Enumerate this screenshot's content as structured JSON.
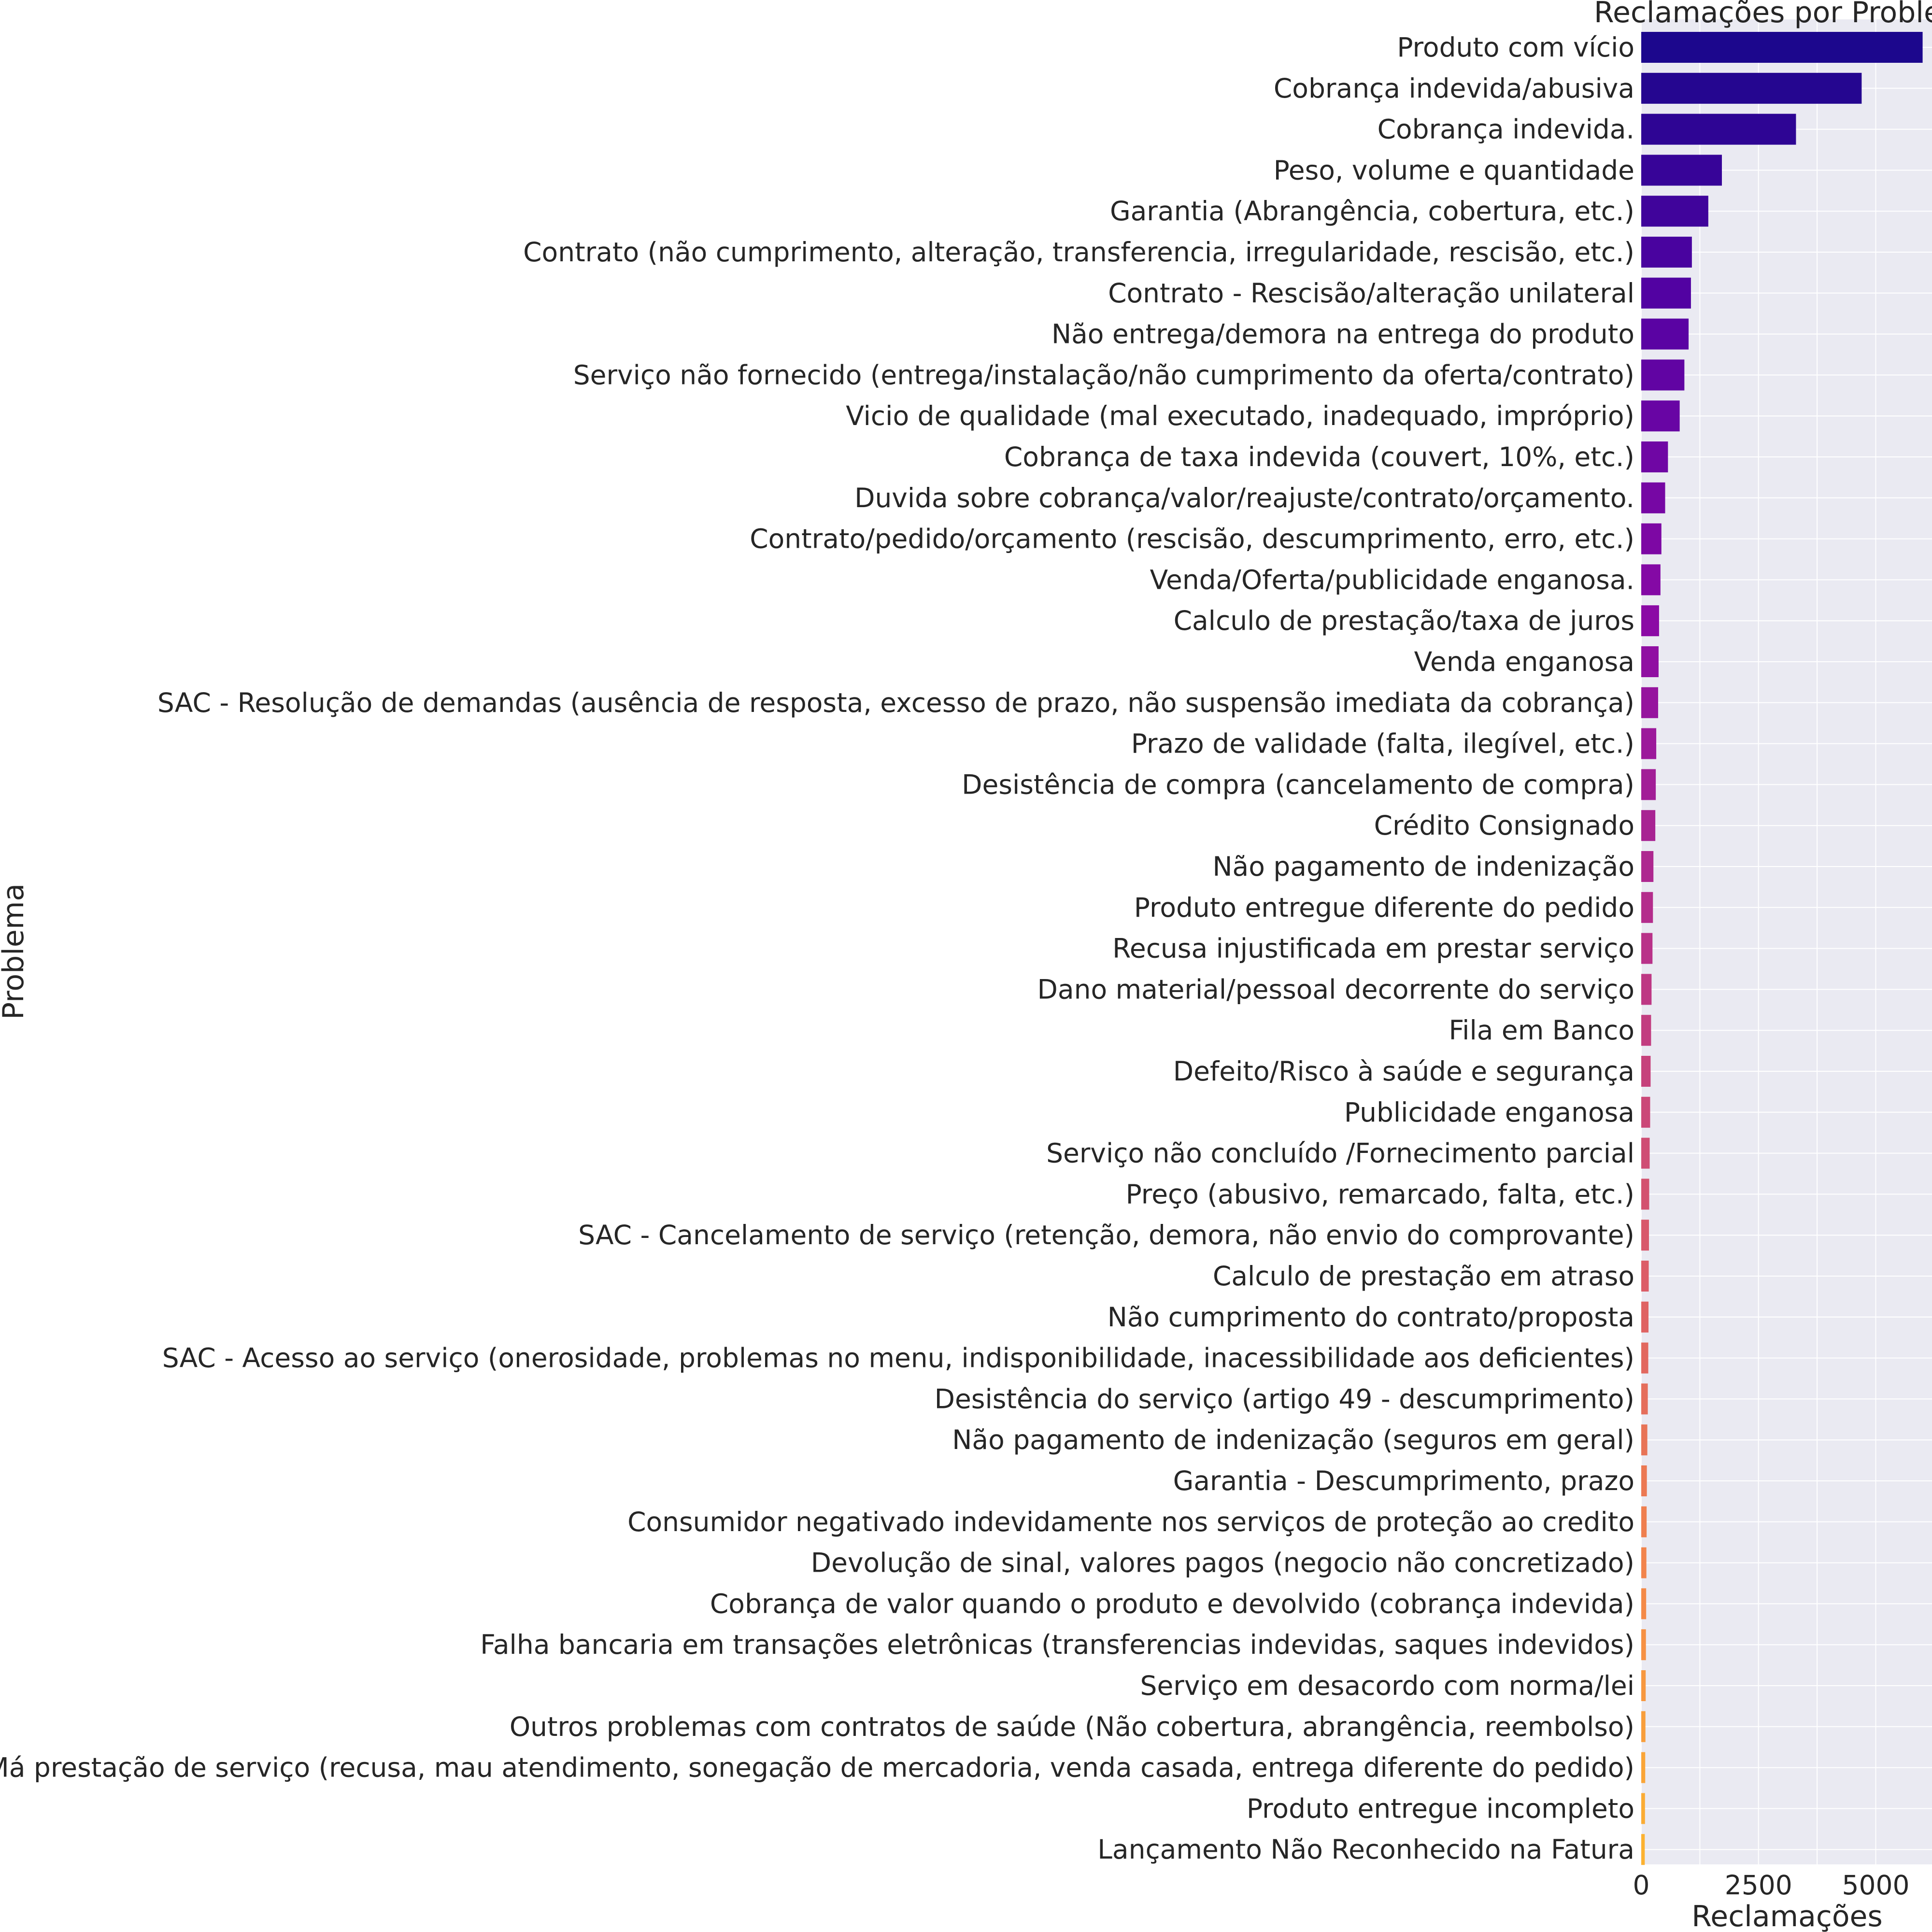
{
  "chart_data": {
    "type": "bar",
    "orientation": "horizontal",
    "title": "Reclamações por Proble",
    "xlabel": "Reclamações",
    "ylabel": "Problema",
    "xlim": [
      0,
      6200
    ],
    "xticks": [
      0,
      2500,
      5000
    ],
    "xtick_labels": [
      "0",
      "2500",
      "5000"
    ],
    "grid": true,
    "colormap": "plasma",
    "categories": [
      "Produto com vício",
      "Cobrança indevida/abusiva",
      "Cobrança indevida.",
      "Peso, volume e quantidade",
      "Garantia (Abrangência, cobertura, etc.)",
      "Contrato (não cumprimento, alteração, transferencia, irregularidade, rescisão, etc.)",
      "Contrato - Rescisão/alteração unilateral",
      "Não entrega/demora na entrega do produto",
      "Serviço não fornecido (entrega/instalação/não cumprimento da oferta/contrato)",
      "Vicio de qualidade (mal executado, inadequado, impróprio)",
      "Cobrança de taxa indevida (couvert, 10%, etc.)",
      "Duvida sobre cobrança/valor/reajuste/contrato/orçamento.",
      "Contrato/pedido/orçamento (rescisão, descumprimento, erro, etc.)",
      "Venda/Oferta/publicidade enganosa.",
      "Calculo de prestação/taxa de juros",
      "Venda enganosa",
      "SAC - Resolução de demandas (ausência de resposta, excesso de prazo, não suspensão imediata da cobrança)",
      "Prazo de validade (falta, ilegível, etc.)",
      "Desistência de compra (cancelamento de compra)",
      "Crédito Consignado",
      "Não pagamento de indenização",
      "Produto entregue diferente do pedido",
      "Recusa injustificada em prestar serviço",
      "Dano material/pessoal decorrente do serviço",
      "Fila em Banco",
      "Defeito/Risco à saúde e segurança",
      "Publicidade enganosa",
      "Serviço não concluído /Fornecimento parcial",
      "Preço (abusivo, remarcado, falta, etc.)",
      "SAC - Cancelamento de serviço (retenção, demora, não envio do comprovante)",
      "Calculo de prestação em atraso",
      "Não cumprimento do contrato/proposta",
      "SAC - Acesso ao serviço (onerosidade, problemas no menu, indisponibilidade, inacessibilidade aos deficientes)",
      "Desistência do serviço (artigo 49 - descumprimento)",
      "Não pagamento de indenização (seguros em geral)",
      "Garantia - Descumprimento, prazo",
      "Consumidor negativado indevidamente nos serviços de proteção ao credito",
      "Devolução de sinal, valores pagos (negocio não concretizado)",
      "Cobrança de valor quando o produto e devolvido (cobrança indevida)",
      "Falha bancaria em transações eletrônicas (transferencias indevidas, saques indevidos)",
      "Serviço em desacordo com norma/lei",
      "Outros problemas com contratos de saúde (Não cobertura, abrangência, reembolso)",
      "Má prestação de serviço (recusa, mau atendimento, sonegação de mercadoria, venda casada, entrega diferente do pedido)",
      "Produto entregue incompleto",
      "Lançamento Não Reconhecido na Fatura"
    ],
    "values": [
      6000,
      4700,
      3300,
      1720,
      1430,
      1080,
      1060,
      1010,
      920,
      820,
      570,
      510,
      430,
      410,
      380,
      370,
      360,
      320,
      310,
      300,
      260,
      250,
      240,
      220,
      210,
      200,
      190,
      180,
      170,
      165,
      160,
      155,
      150,
      140,
      130,
      120,
      115,
      110,
      105,
      100,
      95,
      90,
      85,
      80,
      75
    ]
  }
}
